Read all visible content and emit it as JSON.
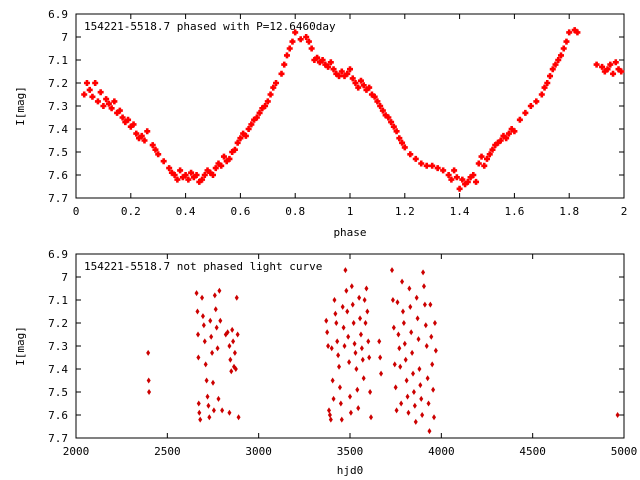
{
  "chart_data": [
    {
      "type": "scatter",
      "title": "154221-5518.7 phased with P=12.6460day",
      "xlabel": "phase",
      "ylabel": "I[mag]",
      "xlim": [
        0,
        2
      ],
      "ylim": [
        7.7,
        6.9
      ],
      "y_inverted": true,
      "xticks": [
        "0",
        "0.2",
        "0.4",
        "0.6",
        "0.8",
        "1",
        "1.2",
        "1.4",
        "1.6",
        "1.8",
        "2"
      ],
      "yticks": [
        "6.9",
        "7",
        "7.1",
        "7.2",
        "7.3",
        "7.4",
        "7.5",
        "7.6",
        "7.7"
      ],
      "grid": false,
      "marker": "plus",
      "color": "#ff0000",
      "points": [
        [
          0.03,
          7.25
        ],
        [
          0.04,
          7.2
        ],
        [
          0.05,
          7.23
        ],
        [
          0.06,
          7.26
        ],
        [
          0.07,
          7.2
        ],
        [
          0.08,
          7.28
        ],
        [
          0.09,
          7.24
        ],
        [
          0.1,
          7.3
        ],
        [
          0.11,
          7.27
        ],
        [
          0.12,
          7.29
        ],
        [
          0.13,
          7.31
        ],
        [
          0.14,
          7.28
        ],
        [
          0.15,
          7.33
        ],
        [
          0.16,
          7.32
        ],
        [
          0.17,
          7.35
        ],
        [
          0.18,
          7.37
        ],
        [
          0.19,
          7.36
        ],
        [
          0.2,
          7.39
        ],
        [
          0.21,
          7.38
        ],
        [
          0.22,
          7.42
        ],
        [
          0.23,
          7.44
        ],
        [
          0.24,
          7.43
        ],
        [
          0.25,
          7.45
        ],
        [
          0.26,
          7.41
        ],
        [
          0.28,
          7.47
        ],
        [
          0.29,
          7.49
        ],
        [
          0.3,
          7.51
        ],
        [
          0.32,
          7.54
        ],
        [
          0.34,
          7.57
        ],
        [
          0.35,
          7.59
        ],
        [
          0.36,
          7.6
        ],
        [
          0.37,
          7.62
        ],
        [
          0.38,
          7.58
        ],
        [
          0.39,
          7.61
        ],
        [
          0.4,
          7.6
        ],
        [
          0.41,
          7.62
        ],
        [
          0.42,
          7.59
        ],
        [
          0.43,
          7.61
        ],
        [
          0.44,
          7.6
        ],
        [
          0.45,
          7.63
        ],
        [
          0.46,
          7.62
        ],
        [
          0.47,
          7.6
        ],
        [
          0.48,
          7.58
        ],
        [
          0.49,
          7.59
        ],
        [
          0.5,
          7.6
        ],
        [
          0.51,
          7.57
        ],
        [
          0.52,
          7.55
        ],
        [
          0.53,
          7.56
        ],
        [
          0.54,
          7.52
        ],
        [
          0.55,
          7.54
        ],
        [
          0.56,
          7.53
        ],
        [
          0.57,
          7.5
        ],
        [
          0.58,
          7.49
        ],
        [
          0.59,
          7.46
        ],
        [
          0.6,
          7.44
        ],
        [
          0.61,
          7.42
        ],
        [
          0.62,
          7.43
        ],
        [
          0.63,
          7.4
        ],
        [
          0.64,
          7.38
        ],
        [
          0.65,
          7.36
        ],
        [
          0.66,
          7.35
        ],
        [
          0.67,
          7.33
        ],
        [
          0.68,
          7.31
        ],
        [
          0.69,
          7.3
        ],
        [
          0.7,
          7.28
        ],
        [
          0.71,
          7.25
        ],
        [
          0.72,
          7.22
        ],
        [
          0.73,
          7.2
        ],
        [
          0.75,
          7.16
        ],
        [
          0.76,
          7.12
        ],
        [
          0.77,
          7.08
        ],
        [
          0.78,
          7.05
        ],
        [
          0.79,
          7.02
        ],
        [
          0.8,
          6.98
        ],
        [
          0.82,
          7.01
        ],
        [
          0.84,
          7.0
        ],
        [
          0.85,
          7.02
        ],
        [
          0.86,
          7.05
        ],
        [
          0.87,
          7.1
        ],
        [
          0.88,
          7.09
        ],
        [
          0.89,
          7.11
        ],
        [
          0.9,
          7.1
        ],
        [
          0.91,
          7.12
        ],
        [
          0.92,
          7.13
        ],
        [
          0.93,
          7.11
        ],
        [
          0.94,
          7.14
        ],
        [
          0.95,
          7.16
        ],
        [
          0.96,
          7.17
        ],
        [
          0.97,
          7.15
        ],
        [
          0.98,
          7.17
        ],
        [
          0.99,
          7.16
        ],
        [
          1.0,
          7.14
        ],
        [
          1.01,
          7.18
        ],
        [
          1.02,
          7.2
        ],
        [
          1.03,
          7.22
        ],
        [
          1.04,
          7.19
        ],
        [
          1.05,
          7.21
        ],
        [
          1.06,
          7.23
        ],
        [
          1.07,
          7.22
        ],
        [
          1.08,
          7.25
        ],
        [
          1.09,
          7.26
        ],
        [
          1.1,
          7.28
        ],
        [
          1.11,
          7.3
        ],
        [
          1.12,
          7.32
        ],
        [
          1.13,
          7.34
        ],
        [
          1.14,
          7.35
        ],
        [
          1.15,
          7.37
        ],
        [
          1.16,
          7.39
        ],
        [
          1.17,
          7.41
        ],
        [
          1.18,
          7.44
        ],
        [
          1.19,
          7.46
        ],
        [
          1.2,
          7.48
        ],
        [
          1.22,
          7.51
        ],
        [
          1.24,
          7.53
        ],
        [
          1.26,
          7.55
        ],
        [
          1.28,
          7.56
        ],
        [
          1.3,
          7.56
        ],
        [
          1.32,
          7.57
        ],
        [
          1.34,
          7.58
        ],
        [
          1.36,
          7.6
        ],
        [
          1.37,
          7.62
        ],
        [
          1.38,
          7.58
        ],
        [
          1.39,
          7.61
        ],
        [
          1.4,
          7.66
        ],
        [
          1.41,
          7.62
        ],
        [
          1.42,
          7.64
        ],
        [
          1.43,
          7.63
        ],
        [
          1.44,
          7.61
        ],
        [
          1.45,
          7.6
        ],
        [
          1.46,
          7.63
        ],
        [
          1.47,
          7.55
        ],
        [
          1.48,
          7.52
        ],
        [
          1.49,
          7.56
        ],
        [
          1.5,
          7.53
        ],
        [
          1.51,
          7.51
        ],
        [
          1.52,
          7.49
        ],
        [
          1.53,
          7.47
        ],
        [
          1.54,
          7.46
        ],
        [
          1.55,
          7.45
        ],
        [
          1.56,
          7.43
        ],
        [
          1.57,
          7.44
        ],
        [
          1.58,
          7.42
        ],
        [
          1.59,
          7.4
        ],
        [
          1.6,
          7.41
        ],
        [
          1.62,
          7.36
        ],
        [
          1.64,
          7.33
        ],
        [
          1.66,
          7.3
        ],
        [
          1.68,
          7.28
        ],
        [
          1.7,
          7.25
        ],
        [
          1.71,
          7.22
        ],
        [
          1.72,
          7.2
        ],
        [
          1.73,
          7.17
        ],
        [
          1.74,
          7.14
        ],
        [
          1.75,
          7.12
        ],
        [
          1.76,
          7.1
        ],
        [
          1.77,
          7.08
        ],
        [
          1.78,
          7.05
        ],
        [
          1.79,
          7.02
        ],
        [
          1.8,
          6.98
        ],
        [
          1.82,
          6.97
        ],
        [
          1.83,
          6.98
        ],
        [
          1.9,
          7.12
        ],
        [
          1.92,
          7.13
        ],
        [
          1.93,
          7.15
        ],
        [
          1.94,
          7.14
        ],
        [
          1.95,
          7.12
        ],
        [
          1.96,
          7.16
        ],
        [
          1.97,
          7.11
        ],
        [
          1.98,
          7.14
        ],
        [
          1.99,
          7.15
        ]
      ]
    },
    {
      "type": "scatter",
      "title": "154221-5518.7 not phased light curve",
      "xlabel": "hjd0",
      "ylabel": "I[mag]",
      "xlim": [
        2000,
        5000
      ],
      "ylim": [
        7.7,
        6.9
      ],
      "y_inverted": true,
      "xticks": [
        "2000",
        "2500",
        "3000",
        "3500",
        "4000",
        "4500",
        "5000"
      ],
      "yticks": [
        "6.9",
        "7",
        "7.1",
        "7.2",
        "7.3",
        "7.4",
        "7.5",
        "7.6",
        "7.7"
      ],
      "grid": false,
      "marker": "diamond",
      "color": "#cc0000",
      "points": [
        [
          2395,
          7.33
        ],
        [
          2398,
          7.45
        ],
        [
          2400,
          7.5
        ],
        [
          2660,
          7.07
        ],
        [
          2665,
          7.15
        ],
        [
          2668,
          7.25
        ],
        [
          2670,
          7.35
        ],
        [
          2672,
          7.55
        ],
        [
          2675,
          7.59
        ],
        [
          2680,
          7.62
        ],
        [
          2690,
          7.09
        ],
        [
          2695,
          7.17
        ],
        [
          2700,
          7.21
        ],
        [
          2705,
          7.28
        ],
        [
          2710,
          7.38
        ],
        [
          2715,
          7.45
        ],
        [
          2720,
          7.52
        ],
        [
          2725,
          7.56
        ],
        [
          2730,
          7.61
        ],
        [
          2735,
          7.19
        ],
        [
          2740,
          7.26
        ],
        [
          2745,
          7.33
        ],
        [
          2750,
          7.46
        ],
        [
          2755,
          7.58
        ],
        [
          2760,
          7.08
        ],
        [
          2765,
          7.14
        ],
        [
          2770,
          7.22
        ],
        [
          2775,
          7.31
        ],
        [
          2780,
          7.53
        ],
        [
          2785,
          7.06
        ],
        [
          2790,
          7.19
        ],
        [
          2800,
          7.58
        ],
        [
          2820,
          7.25
        ],
        [
          2830,
          7.24
        ],
        [
          2840,
          7.3
        ],
        [
          2845,
          7.36
        ],
        [
          2850,
          7.41
        ],
        [
          2855,
          7.23
        ],
        [
          2860,
          7.28
        ],
        [
          2865,
          7.39
        ],
        [
          2870,
          7.33
        ],
        [
          2875,
          7.4
        ],
        [
          2880,
          7.09
        ],
        [
          2885,
          7.25
        ],
        [
          2890,
          7.61
        ],
        [
          2840,
          7.59
        ],
        [
          3370,
          7.19
        ],
        [
          3375,
          7.24
        ],
        [
          3380,
          7.3
        ],
        [
          3385,
          7.58
        ],
        [
          3390,
          7.6
        ],
        [
          3395,
          7.62
        ],
        [
          3400,
          7.31
        ],
        [
          3405,
          7.45
        ],
        [
          3410,
          7.53
        ],
        [
          3415,
          7.1
        ],
        [
          3420,
          7.16
        ],
        [
          3425,
          7.2
        ],
        [
          3430,
          7.28
        ],
        [
          3435,
          7.34
        ],
        [
          3440,
          7.39
        ],
        [
          3445,
          7.48
        ],
        [
          3450,
          7.55
        ],
        [
          3455,
          7.62
        ],
        [
          3460,
          7.13
        ],
        [
          3465,
          7.22
        ],
        [
          3470,
          7.3
        ],
        [
          3475,
          6.97
        ],
        [
          3480,
          7.06
        ],
        [
          3485,
          7.15
        ],
        [
          3490,
          7.26
        ],
        [
          3495,
          7.37
        ],
        [
          3500,
          7.52
        ],
        [
          3505,
          7.59
        ],
        [
          3510,
          7.04
        ],
        [
          3515,
          7.12
        ],
        [
          3520,
          7.2
        ],
        [
          3525,
          7.29
        ],
        [
          3530,
          7.33
        ],
        [
          3535,
          7.4
        ],
        [
          3540,
          7.49
        ],
        [
          3545,
          7.57
        ],
        [
          3550,
          7.09
        ],
        [
          3555,
          7.18
        ],
        [
          3560,
          7.25
        ],
        [
          3565,
          7.31
        ],
        [
          3570,
          7.36
        ],
        [
          3575,
          7.44
        ],
        [
          3580,
          7.1
        ],
        [
          3585,
          7.2
        ],
        [
          3590,
          7.05
        ],
        [
          3595,
          7.15
        ],
        [
          3600,
          7.28
        ],
        [
          3605,
          7.35
        ],
        [
          3610,
          7.5
        ],
        [
          3615,
          7.61
        ],
        [
          3660,
          7.28
        ],
        [
          3665,
          7.35
        ],
        [
          3670,
          7.42
        ],
        [
          3730,
          6.97
        ],
        [
          3735,
          7.1
        ],
        [
          3740,
          7.22
        ],
        [
          3745,
          7.38
        ],
        [
          3750,
          7.48
        ],
        [
          3755,
          7.58
        ],
        [
          3760,
          7.11
        ],
        [
          3765,
          7.25
        ],
        [
          3770,
          7.31
        ],
        [
          3775,
          7.39
        ],
        [
          3780,
          7.55
        ],
        [
          3785,
          7.02
        ],
        [
          3790,
          7.15
        ],
        [
          3795,
          7.2
        ],
        [
          3800,
          7.29
        ],
        [
          3805,
          7.36
        ],
        [
          3810,
          7.45
        ],
        [
          3815,
          7.52
        ],
        [
          3820,
          7.59
        ],
        [
          3825,
          7.05
        ],
        [
          3830,
          7.13
        ],
        [
          3835,
          7.24
        ],
        [
          3840,
          7.33
        ],
        [
          3845,
          7.42
        ],
        [
          3850,
          7.5
        ],
        [
          3855,
          7.56
        ],
        [
          3860,
          7.63
        ],
        [
          3865,
          7.09
        ],
        [
          3870,
          7.18
        ],
        [
          3875,
          7.27
        ],
        [
          3880,
          7.4
        ],
        [
          3885,
          7.47
        ],
        [
          3890,
          7.53
        ],
        [
          3895,
          7.6
        ],
        [
          3900,
          6.98
        ],
        [
          3905,
          7.04
        ],
        [
          3910,
          7.12
        ],
        [
          3915,
          7.21
        ],
        [
          3920,
          7.3
        ],
        [
          3925,
          7.44
        ],
        [
          3930,
          7.55
        ],
        [
          3935,
          7.67
        ],
        [
          3940,
          7.12
        ],
        [
          3945,
          7.26
        ],
        [
          3950,
          7.38
        ],
        [
          3955,
          7.49
        ],
        [
          3960,
          7.61
        ],
        [
          3965,
          7.2
        ],
        [
          3970,
          7.32
        ],
        [
          4965,
          7.6
        ]
      ]
    }
  ]
}
